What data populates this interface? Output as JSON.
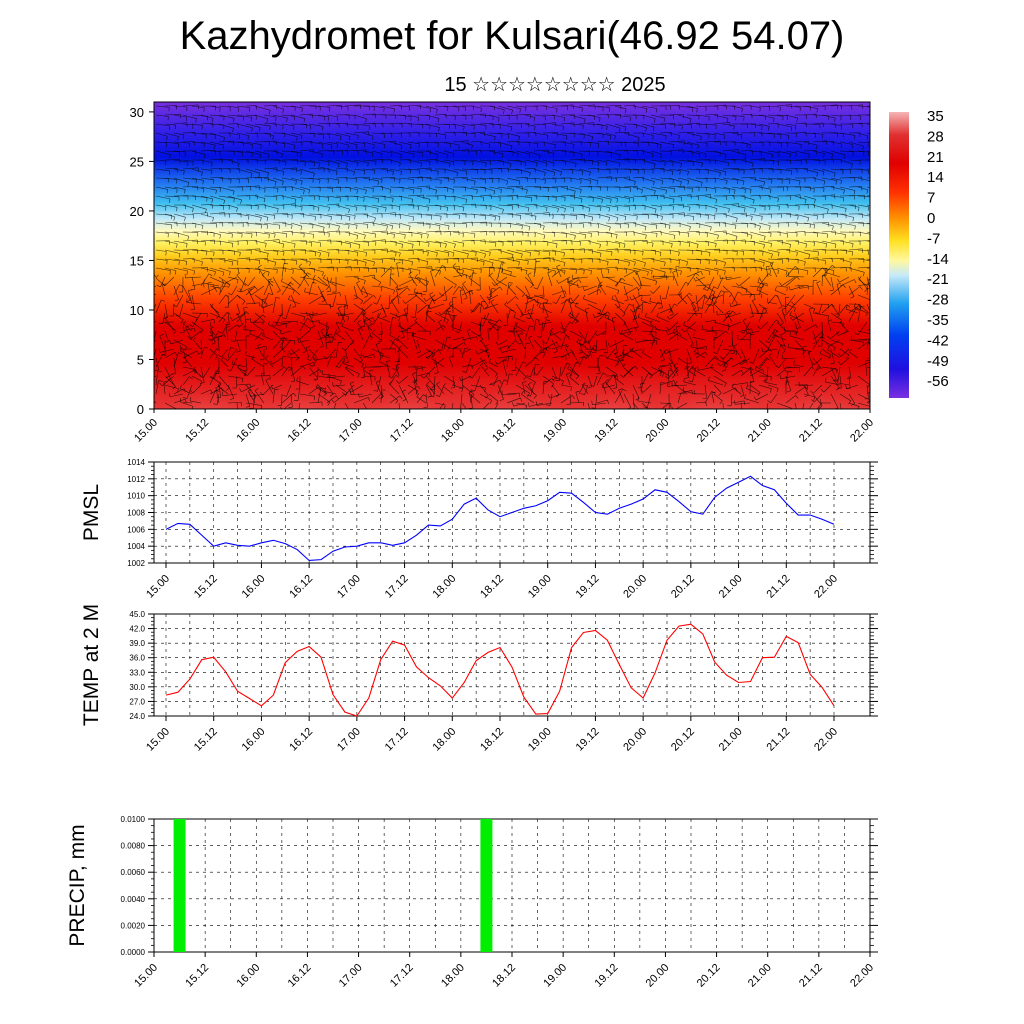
{
  "title": "Kazhydromet for Kulsari(46.92 54.07)",
  "subtitle": "15 ☆☆☆☆☆☆☆☆ 2025",
  "colorbar": {
    "labels": [
      "35",
      "28",
      "21",
      "14",
      "7",
      "0",
      "-7",
      "-14",
      "-21",
      "-28",
      "-35",
      "-42",
      "-49",
      "-56"
    ]
  },
  "chart_data": [
    {
      "type": "heatmap",
      "name": "temperature-wind cross-section",
      "xlabel": "",
      "ylabel": "",
      "x_ticks": [
        "15.00",
        "15.12",
        "16.00",
        "16.12",
        "17.00",
        "17.12",
        "18.00",
        "18.12",
        "19.00",
        "19.12",
        "20.00",
        "20.12",
        "21.00",
        "21.12",
        "22.00"
      ],
      "y_ticks": [
        0,
        5,
        10,
        15,
        20,
        25,
        30
      ],
      "ylim": [
        0,
        31
      ],
      "color_levels": [
        35,
        28,
        21,
        14,
        7,
        0,
        -7,
        -14,
        -21,
        -28,
        -35,
        -42,
        -49,
        -56
      ],
      "colors": {
        "warm": "#e00000",
        "hot_peak": "#f5a8a8",
        "mid": "#ff9000",
        "cool": "#fff000",
        "cold": "#40c0f0",
        "freezing": "#0010e0",
        "top": "#7a30e0"
      }
    },
    {
      "type": "line",
      "ylabel": "PMSL",
      "x_ticks": [
        "15.00",
        "15.12",
        "16.00",
        "16.12",
        "17.00",
        "17.12",
        "18.00",
        "18.12",
        "19.00",
        "19.12",
        "20.00",
        "20.12",
        "21.00",
        "21.12",
        "22.00"
      ],
      "y_ticks": [
        "1002",
        "1004",
        "1006",
        "1008",
        "1010",
        "1012",
        "1014"
      ],
      "ylim": [
        1002,
        1014
      ],
      "color": "#0000ff",
      "values": [
        1006.0,
        1006.7,
        1006.6,
        1005.3,
        1004.0,
        1004.4,
        1004.1,
        1004.0,
        1004.4,
        1004.7,
        1004.3,
        1003.6,
        1002.3,
        1002.4,
        1003.4,
        1003.9,
        1004.0,
        1004.4,
        1004.4,
        1004.1,
        1004.4,
        1005.3,
        1006.5,
        1006.4,
        1007.2,
        1009.0,
        1009.7,
        1008.3,
        1007.5,
        1008.0,
        1008.5,
        1008.8,
        1009.4,
        1010.4,
        1010.3,
        1009.2,
        1008.0,
        1007.8,
        1008.5,
        1009.0,
        1009.6,
        1010.7,
        1010.4,
        1009.3,
        1008.1,
        1007.8,
        1009.8,
        1010.9,
        1011.6,
        1012.3,
        1011.2,
        1010.7,
        1009.1,
        1007.7,
        1007.7,
        1007.2,
        1006.6
      ]
    },
    {
      "type": "line",
      "ylabel": "TEMP at 2 M",
      "x_ticks": [
        "15.00",
        "15.12",
        "16.00",
        "16.12",
        "17.00",
        "17.12",
        "18.00",
        "18.12",
        "19.00",
        "19.12",
        "20.00",
        "20.12",
        "21.00",
        "21.12",
        "22.00"
      ],
      "y_ticks": [
        "24.0",
        "27.0",
        "30.0",
        "33.0",
        "36.0",
        "39.0",
        "42.0",
        "45.0"
      ],
      "ylim": [
        24,
        45
      ],
      "color": "#ff0000",
      "values": [
        28.3,
        28.9,
        31.6,
        35.6,
        36.1,
        33.1,
        29.1,
        27.6,
        26.1,
        28.3,
        35.0,
        37.3,
        38.3,
        36.1,
        28.4,
        24.8,
        24.0,
        27.7,
        35.6,
        39.4,
        38.6,
        34.1,
        31.9,
        30.2,
        27.7,
        30.9,
        35.4,
        37.1,
        38.1,
        34.1,
        27.9,
        24.4,
        24.5,
        29.1,
        38.1,
        41.2,
        41.6,
        39.6,
        34.6,
        29.8,
        27.7,
        32.9,
        39.6,
        42.5,
        42.9,
        40.9,
        35.1,
        32.4,
        30.9,
        31.1,
        36.0,
        36.1,
        40.4,
        39.1,
        32.6,
        29.9,
        26.1
      ]
    },
    {
      "type": "bar",
      "ylabel": "PRECIP, mm",
      "x_ticks": [
        "15.00",
        "15.12",
        "16.00",
        "16.12",
        "17.00",
        "17.12",
        "18.00",
        "18.12",
        "19.00",
        "19.12",
        "20.00",
        "20.12",
        "21.00",
        "21.12",
        "22.00"
      ],
      "y_ticks": [
        "0.0000",
        "0.0020",
        "0.0040",
        "0.0060",
        "0.0080",
        "0.0100"
      ],
      "ylim": [
        0,
        0.01
      ],
      "color": "#00ee00",
      "bars": [
        {
          "hour": 3,
          "value": 0.01
        },
        {
          "hour": 75,
          "value": 0.01
        }
      ]
    }
  ]
}
